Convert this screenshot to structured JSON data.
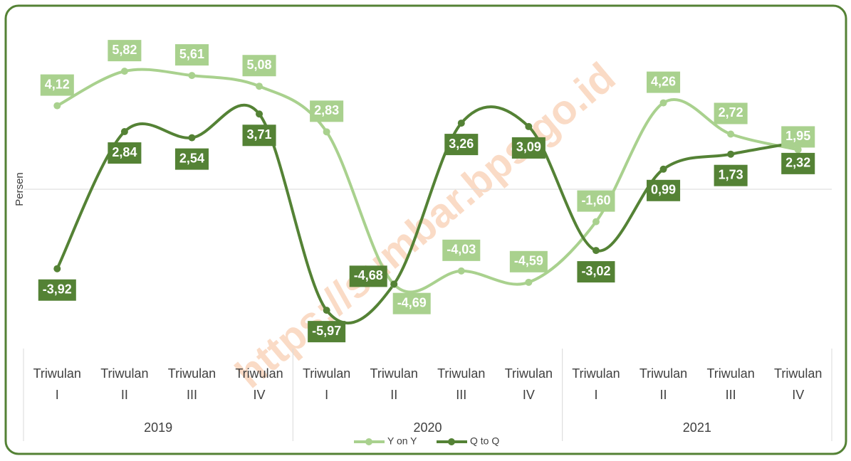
{
  "chart_data": {
    "type": "line",
    "y_axis_label": "Persen",
    "watermark": "https://sumbar.bps.go.id",
    "categories": [
      "Triwulan I",
      "Triwulan II",
      "Triwulan III",
      "Triwulan IV",
      "Triwulan I",
      "Triwulan II",
      "Triwulan III",
      "Triwulan IV",
      "Triwulan I",
      "Triwulan II",
      "Triwulan III",
      "Triwulan IV"
    ],
    "groups": [
      "2019",
      "2020",
      "2021"
    ],
    "ylim": [
      -8,
      8
    ],
    "series": [
      {
        "name": "Y on Y",
        "color": "#a9d18e",
        "values": [
          4.12,
          5.82,
          5.61,
          5.08,
          2.83,
          -4.69,
          -4.03,
          -4.59,
          -1.6,
          4.26,
          2.72,
          1.95
        ],
        "value_labels": [
          "4,12",
          "5,82",
          "5,61",
          "5,08",
          "2,83",
          "-4,69",
          "-4,03",
          "-4,59",
          "-1,60",
          "4,26",
          "2,72",
          "1,95"
        ]
      },
      {
        "name": "Q to Q",
        "color": "#548235",
        "values": [
          -3.92,
          2.84,
          2.54,
          3.71,
          -5.97,
          -4.68,
          3.26,
          3.09,
          -3.02,
          0.99,
          1.73,
          2.32
        ],
        "value_labels": [
          "-3,92",
          "2,84",
          "2,54",
          "3,71",
          "-5,97",
          "-4,68",
          "3,26",
          "3,09",
          "-3,02",
          "0,99",
          "1,73",
          "2,32"
        ]
      }
    ],
    "legend": "bottom"
  }
}
